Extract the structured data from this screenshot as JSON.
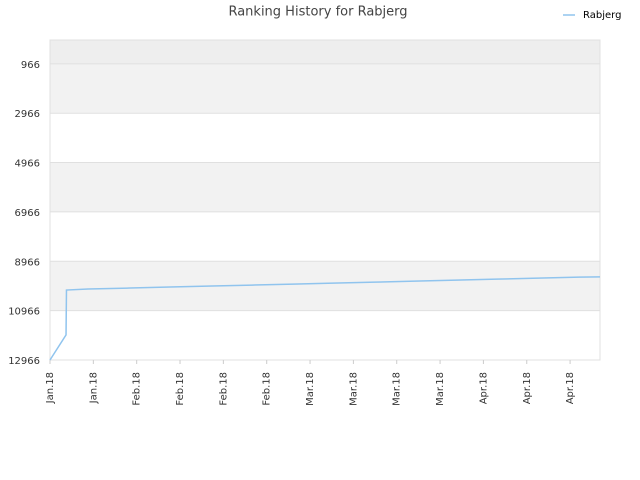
{
  "chart_data": {
    "type": "line",
    "title": "Ranking History for Rabjerg",
    "x": [
      0,
      0.37,
      0.38,
      0.88,
      1.85,
      2.77,
      3.74,
      4.66,
      5.61,
      6.53,
      7.5,
      8.42,
      9.37,
      10.3,
      11.26,
      12.2,
      12.69
    ],
    "series": [
      {
        "name": "Rabjerg",
        "color": "#90c4ee",
        "values": [
          12966,
          11950,
          10131,
          10090,
          10050,
          10010,
          9970,
          9930,
          9890,
          9850,
          9810,
          9770,
          9730,
          9690,
          9650,
          9610,
          9600
        ]
      }
    ],
    "xlim": [
      0,
      12.69
    ],
    "xticks": [
      {
        "value": 0,
        "label": "Jan.18"
      },
      {
        "value": 1,
        "label": "Jan.18"
      },
      {
        "value": 2,
        "label": "Feb.18"
      },
      {
        "value": 3,
        "label": "Feb.18"
      },
      {
        "value": 4,
        "label": "Feb.18"
      },
      {
        "value": 5,
        "label": "Feb.18"
      },
      {
        "value": 6,
        "label": "Mar.18"
      },
      {
        "value": 7,
        "label": "Mar.18"
      },
      {
        "value": 8,
        "label": "Mar.18"
      },
      {
        "value": 9,
        "label": "Mar.18"
      },
      {
        "value": 10,
        "label": "Apr.18"
      },
      {
        "value": 11,
        "label": "Apr.18"
      },
      {
        "value": 12,
        "label": "Apr.18"
      }
    ],
    "ylim": [
      12966,
      0
    ],
    "yticks": [
      966,
      2966,
      4966,
      6966,
      8966,
      10966,
      12966
    ],
    "grid": true,
    "legend": "top-right"
  }
}
